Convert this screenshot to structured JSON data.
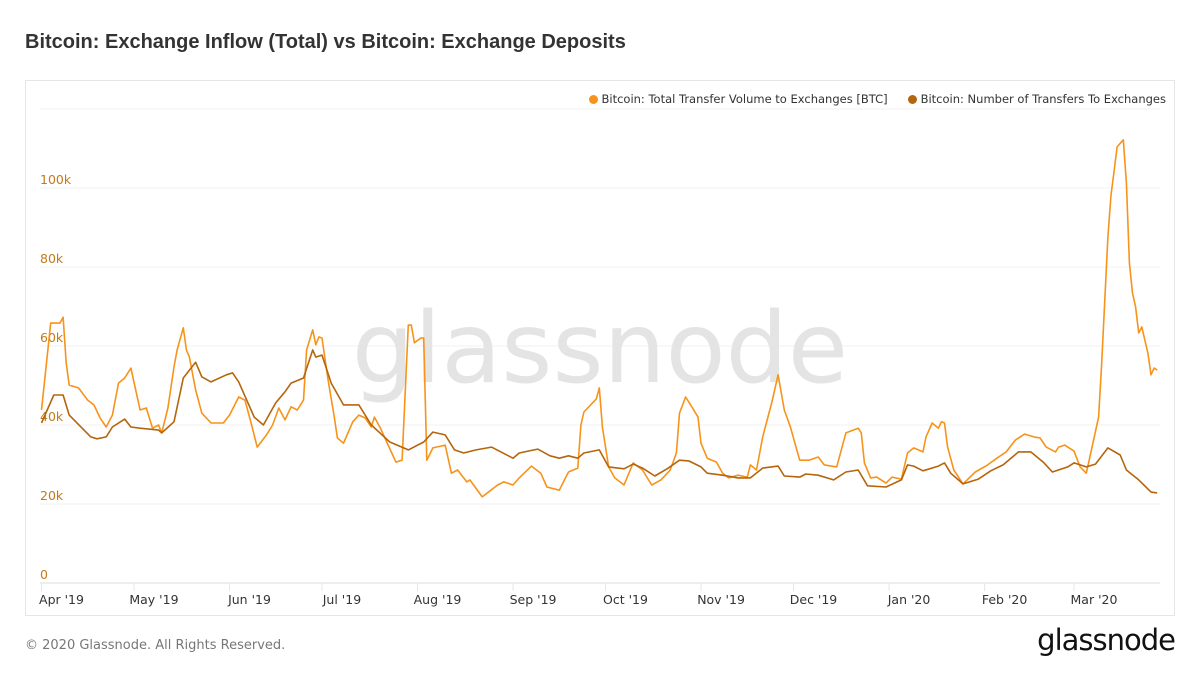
{
  "title": "Bitcoin: Exchange Inflow (Total) vs Bitcoin: Exchange Deposits",
  "footer": "© 2020 Glassnode. All Rights Reserved.",
  "logo": "glassnode",
  "watermark": "glassnode",
  "chart_data": {
    "type": "line",
    "title": "Bitcoin: Exchange Inflow (Total) vs Bitcoin: Exchange Deposits",
    "x_unit": "days since start date",
    "x_start": "2019-04-01",
    "ylim": [
      0,
      120000
    ],
    "y_ticks": [
      0,
      20000,
      40000,
      60000,
      80000,
      100000
    ],
    "y_tick_labels": [
      "0",
      "20k",
      "40k",
      "60k",
      "80k",
      "100k"
    ],
    "x_ticks": [
      0,
      30,
      61,
      91,
      122,
      153,
      183,
      214,
      244,
      275,
      306,
      335
    ],
    "x_tick_labels": [
      "Apr '19",
      "May '19",
      "Jun '19",
      "Jul '19",
      "Aug '19",
      "Sep '19",
      "Oct '19",
      "Nov '19",
      "Dec '19",
      "Jan '20",
      "Feb '20",
      "Mar '20"
    ],
    "grid": true,
    "legend_position": "top-right",
    "series": [
      {
        "name": "Bitcoin: Total Transfer Volume to Exchanges [BTC]",
        "color": "#f7931a",
        "points": [
          [
            0,
            43.8
          ],
          [
            3,
            65.8
          ],
          [
            4,
            65.8
          ],
          [
            6,
            65.8
          ],
          [
            7,
            67.3
          ],
          [
            8,
            55.7
          ],
          [
            9,
            50.1
          ],
          [
            12,
            49.4
          ],
          [
            15,
            46.3
          ],
          [
            17,
            45.1
          ],
          [
            19,
            41.8
          ],
          [
            21,
            39.5
          ],
          [
            23,
            42.5
          ],
          [
            25,
            50.6
          ],
          [
            27,
            51.9
          ],
          [
            29,
            54.4
          ],
          [
            32,
            43.8
          ],
          [
            34,
            44.3
          ],
          [
            36,
            39.2
          ],
          [
            38,
            40.0
          ],
          [
            39,
            38.0
          ],
          [
            41,
            44.3
          ],
          [
            43,
            54.7
          ],
          [
            44,
            59.0
          ],
          [
            46,
            64.6
          ],
          [
            47,
            59.0
          ],
          [
            48,
            57.2
          ],
          [
            50,
            48.9
          ],
          [
            52,
            43.0
          ],
          [
            55,
            40.5
          ],
          [
            59,
            40.5
          ],
          [
            61,
            42.5
          ],
          [
            64,
            47.1
          ],
          [
            66,
            46.3
          ],
          [
            68,
            40.5
          ],
          [
            70,
            34.4
          ],
          [
            73,
            37.5
          ],
          [
            75,
            40.0
          ],
          [
            77,
            44.3
          ],
          [
            79,
            41.3
          ],
          [
            81,
            44.6
          ],
          [
            83,
            43.8
          ],
          [
            85,
            46.3
          ],
          [
            86,
            59.0
          ],
          [
            88,
            64.1
          ],
          [
            89,
            60.3
          ],
          [
            90,
            62.3
          ],
          [
            91,
            62.0
          ],
          [
            93,
            51.4
          ],
          [
            95,
            42.0
          ],
          [
            96,
            36.7
          ],
          [
            98,
            35.4
          ],
          [
            101,
            40.8
          ],
          [
            103,
            42.5
          ],
          [
            105,
            41.8
          ],
          [
            107,
            39.5
          ],
          [
            108,
            42.0
          ],
          [
            110,
            39.2
          ],
          [
            112,
            35.7
          ],
          [
            115,
            30.6
          ],
          [
            117,
            31.1
          ],
          [
            119,
            65.3
          ],
          [
            120,
            65.3
          ],
          [
            121,
            60.8
          ],
          [
            123,
            62.0
          ],
          [
            124,
            62.0
          ],
          [
            125,
            31.1
          ],
          [
            127,
            34.2
          ],
          [
            131,
            34.9
          ],
          [
            133,
            27.8
          ],
          [
            135,
            28.6
          ],
          [
            138,
            25.6
          ],
          [
            139,
            26.1
          ],
          [
            143,
            21.8
          ],
          [
            148,
            24.8
          ],
          [
            150,
            25.6
          ],
          [
            153,
            24.8
          ],
          [
            155,
            26.6
          ],
          [
            159,
            29.6
          ],
          [
            162,
            27.8
          ],
          [
            164,
            24.3
          ],
          [
            168,
            23.5
          ],
          [
            171,
            28.1
          ],
          [
            174,
            29.1
          ],
          [
            175,
            40.0
          ],
          [
            176,
            43.3
          ],
          [
            180,
            46.6
          ],
          [
            181,
            49.4
          ],
          [
            182,
            39.5
          ],
          [
            184,
            29.4
          ],
          [
            186,
            26.6
          ],
          [
            189,
            24.8
          ],
          [
            192,
            30.4
          ],
          [
            195,
            28.6
          ],
          [
            198,
            24.8
          ],
          [
            201,
            26.1
          ],
          [
            204,
            28.6
          ],
          [
            206,
            32.9
          ],
          [
            207,
            43.0
          ],
          [
            209,
            47.1
          ],
          [
            211,
            44.6
          ],
          [
            213,
            42.0
          ],
          [
            214,
            35.4
          ],
          [
            216,
            31.6
          ],
          [
            219,
            30.6
          ],
          [
            221,
            27.8
          ],
          [
            223,
            26.6
          ],
          [
            226,
            27.3
          ],
          [
            229,
            26.8
          ],
          [
            230,
            29.9
          ],
          [
            232,
            28.6
          ],
          [
            234,
            37.0
          ],
          [
            237,
            45.8
          ],
          [
            239,
            52.7
          ],
          [
            241,
            43.8
          ],
          [
            243,
            39.5
          ],
          [
            246,
            31.1
          ],
          [
            249,
            31.1
          ],
          [
            252,
            31.9
          ],
          [
            254,
            29.9
          ],
          [
            258,
            29.4
          ],
          [
            261,
            38.0
          ],
          [
            265,
            39.2
          ],
          [
            266,
            38.0
          ],
          [
            267,
            30.4
          ],
          [
            269,
            26.6
          ],
          [
            271,
            26.8
          ],
          [
            274,
            25.3
          ],
          [
            276,
            26.8
          ],
          [
            279,
            26.3
          ],
          [
            281,
            32.9
          ],
          [
            283,
            34.2
          ],
          [
            286,
            33.2
          ],
          [
            287,
            37.0
          ],
          [
            289,
            40.5
          ],
          [
            291,
            39.2
          ],
          [
            292,
            40.8
          ],
          [
            293,
            40.5
          ],
          [
            294,
            34.4
          ],
          [
            296,
            28.6
          ],
          [
            299,
            25.1
          ],
          [
            303,
            28.1
          ],
          [
            307,
            29.9
          ],
          [
            310,
            31.6
          ],
          [
            313,
            33.2
          ],
          [
            316,
            36.2
          ],
          [
            319,
            37.7
          ],
          [
            322,
            37.0
          ],
          [
            324,
            36.7
          ],
          [
            326,
            34.4
          ],
          [
            329,
            33.2
          ],
          [
            330,
            34.4
          ],
          [
            332,
            34.9
          ],
          [
            335,
            33.4
          ],
          [
            337,
            29.4
          ],
          [
            339,
            27.8
          ],
          [
            341,
            34.9
          ],
          [
            343,
            42.0
          ],
          [
            344,
            55.7
          ],
          [
            346,
            87.6
          ],
          [
            347,
            98.2
          ],
          [
            348,
            104.1
          ],
          [
            349,
            110.4
          ],
          [
            351,
            112.2
          ],
          [
            352,
            101.3
          ],
          [
            353,
            81.0
          ],
          [
            354,
            73.4
          ],
          [
            355,
            69.9
          ],
          [
            356,
            63.3
          ],
          [
            357,
            64.8
          ],
          [
            359,
            58.2
          ],
          [
            360,
            52.7
          ],
          [
            361,
            54.4
          ],
          [
            362,
            53.9
          ]
        ]
      },
      {
        "name": "Bitcoin: Number of Transfers To Exchanges",
        "color": "#b5650d",
        "points": [
          [
            0,
            40.5
          ],
          [
            4,
            47.6
          ],
          [
            7,
            47.6
          ],
          [
            9,
            42.5
          ],
          [
            16,
            37.0
          ],
          [
            18,
            36.5
          ],
          [
            21,
            37.0
          ],
          [
            23,
            39.5
          ],
          [
            27,
            41.5
          ],
          [
            29,
            39.5
          ],
          [
            32,
            39.2
          ],
          [
            38,
            38.7
          ],
          [
            39,
            38.0
          ],
          [
            43,
            40.8
          ],
          [
            46,
            51.9
          ],
          [
            50,
            55.9
          ],
          [
            52,
            52.2
          ],
          [
            55,
            50.9
          ],
          [
            60,
            52.7
          ],
          [
            62,
            53.2
          ],
          [
            64,
            50.9
          ],
          [
            69,
            42.0
          ],
          [
            72,
            40.0
          ],
          [
            76,
            45.6
          ],
          [
            79,
            48.4
          ],
          [
            81,
            50.6
          ],
          [
            85,
            51.9
          ],
          [
            88,
            59.0
          ],
          [
            89,
            57.2
          ],
          [
            91,
            57.7
          ],
          [
            94,
            50.6
          ],
          [
            98,
            45.1
          ],
          [
            103,
            45.1
          ],
          [
            107,
            40.0
          ],
          [
            113,
            35.7
          ],
          [
            119,
            33.7
          ],
          [
            124,
            35.7
          ],
          [
            127,
            38.2
          ],
          [
            131,
            37.5
          ],
          [
            134,
            33.7
          ],
          [
            137,
            32.9
          ],
          [
            141,
            33.7
          ],
          [
            146,
            34.4
          ],
          [
            153,
            31.6
          ],
          [
            155,
            32.9
          ],
          [
            161,
            33.9
          ],
          [
            165,
            32.2
          ],
          [
            168,
            31.6
          ],
          [
            171,
            32.2
          ],
          [
            174,
            31.6
          ],
          [
            176,
            32.9
          ],
          [
            181,
            33.7
          ],
          [
            184,
            29.4
          ],
          [
            189,
            28.9
          ],
          [
            192,
            30.1
          ],
          [
            195,
            29.1
          ],
          [
            199,
            27.1
          ],
          [
            203,
            28.9
          ],
          [
            207,
            31.1
          ],
          [
            210,
            30.9
          ],
          [
            214,
            29.4
          ],
          [
            216,
            27.8
          ],
          [
            221,
            27.3
          ],
          [
            226,
            26.6
          ],
          [
            230,
            26.6
          ],
          [
            234,
            29.1
          ],
          [
            239,
            29.6
          ],
          [
            241,
            27.1
          ],
          [
            246,
            26.8
          ],
          [
            248,
            27.6
          ],
          [
            252,
            27.3
          ],
          [
            257,
            26.1
          ],
          [
            261,
            28.1
          ],
          [
            265,
            28.6
          ],
          [
            268,
            24.6
          ],
          [
            274,
            24.3
          ],
          [
            279,
            26.1
          ],
          [
            281,
            29.9
          ],
          [
            283,
            29.6
          ],
          [
            286,
            28.4
          ],
          [
            291,
            29.6
          ],
          [
            293,
            30.4
          ],
          [
            295,
            27.8
          ],
          [
            299,
            25.1
          ],
          [
            304,
            26.3
          ],
          [
            308,
            28.4
          ],
          [
            312,
            29.9
          ],
          [
            317,
            33.2
          ],
          [
            321,
            33.2
          ],
          [
            325,
            30.6
          ],
          [
            328,
            28.1
          ],
          [
            333,
            29.4
          ],
          [
            335,
            30.4
          ],
          [
            339,
            29.4
          ],
          [
            342,
            30.1
          ],
          [
            346,
            34.2
          ],
          [
            350,
            32.4
          ],
          [
            352,
            28.6
          ],
          [
            356,
            26.1
          ],
          [
            360,
            23.0
          ],
          [
            362,
            22.8
          ]
        ]
      }
    ],
    "value_scale": "thousands"
  }
}
